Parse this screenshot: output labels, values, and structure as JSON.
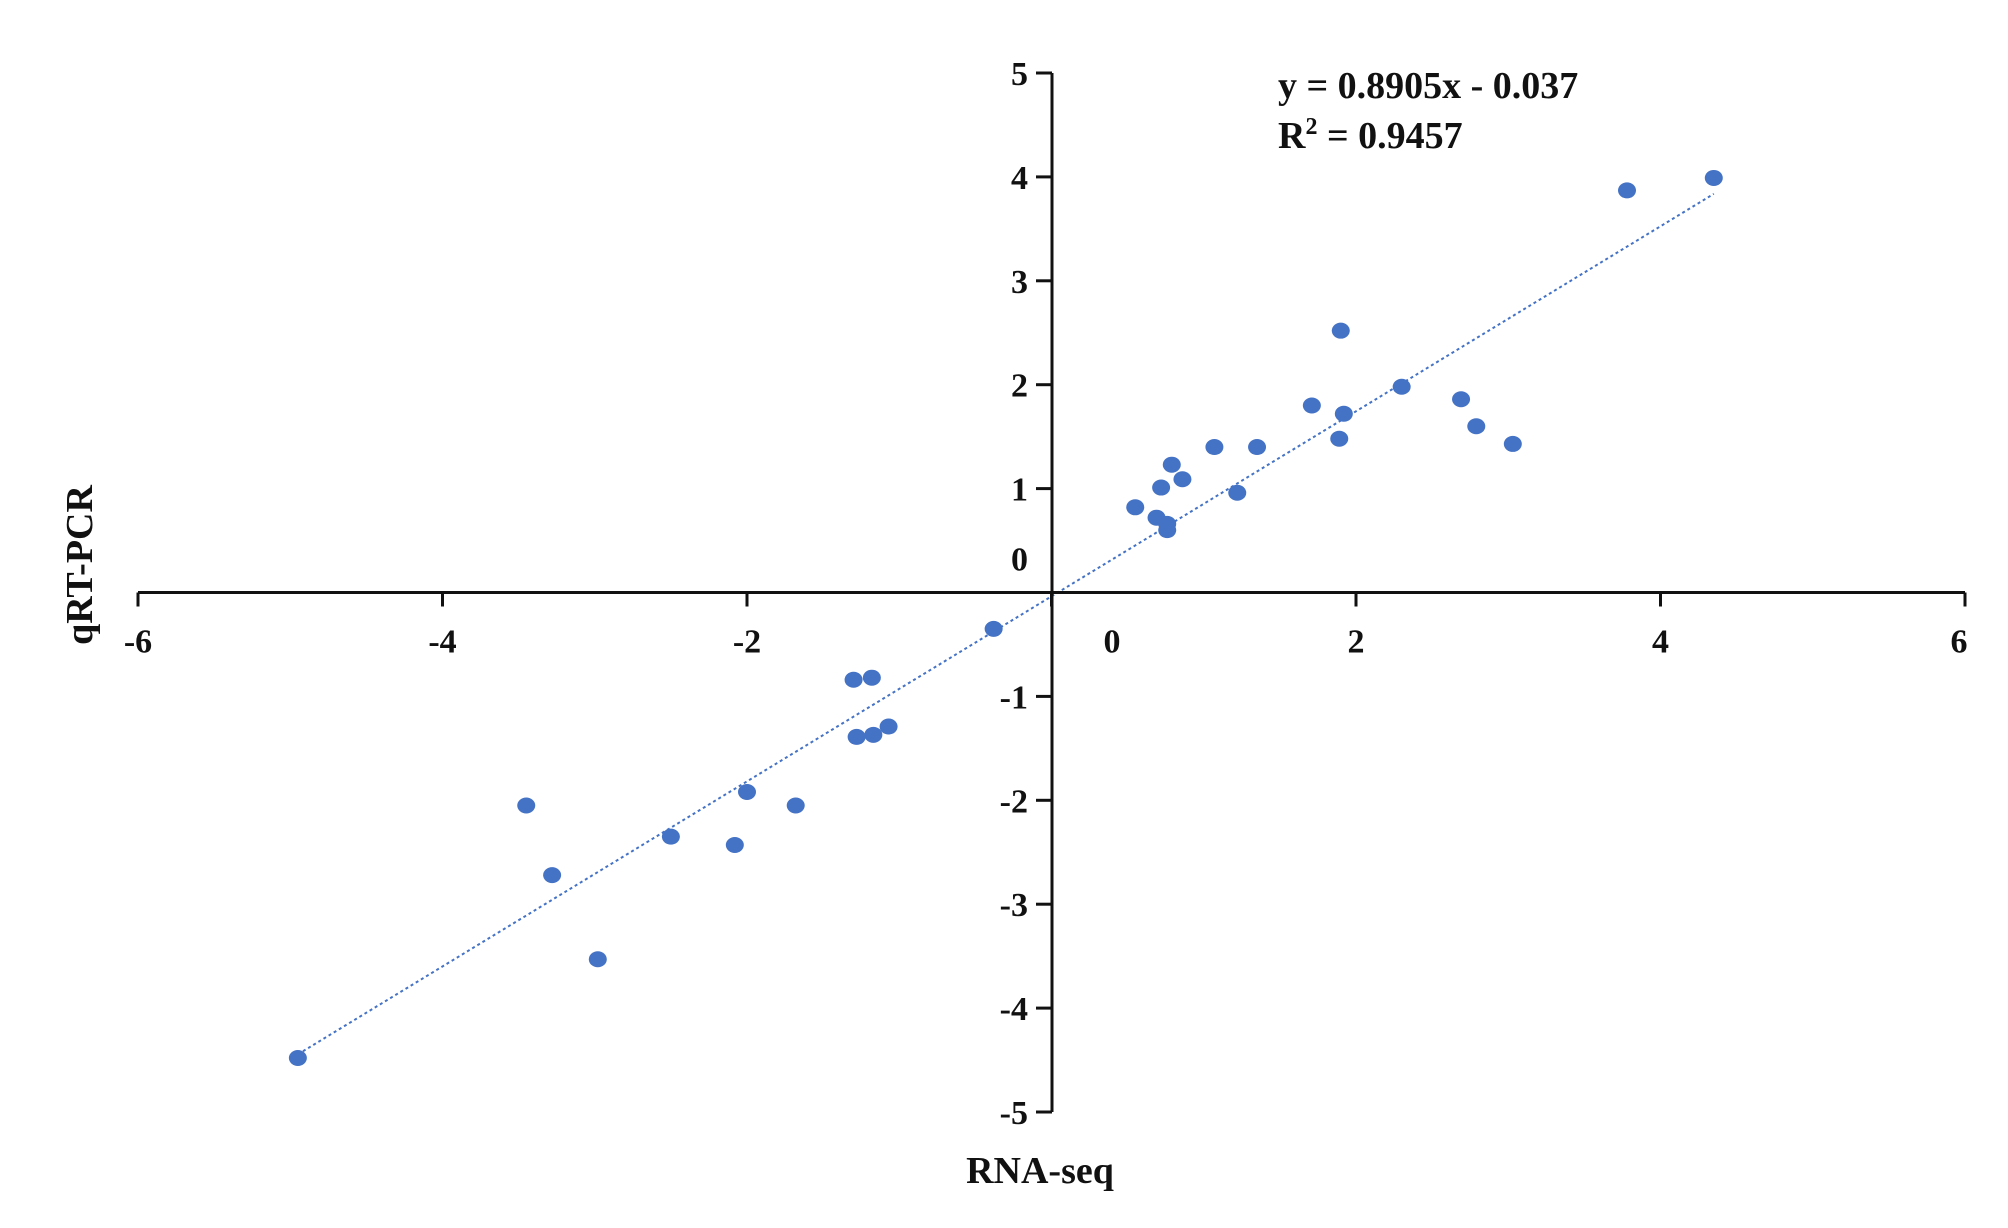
{
  "chart_data": {
    "type": "scatter",
    "title": "",
    "xlabel": "RNA-seq",
    "ylabel": "qRT-PCR",
    "xlim": [
      -6,
      6
    ],
    "ylim": [
      -5,
      5
    ],
    "xticks": [
      -6,
      -4,
      -2,
      0,
      2,
      4,
      6
    ],
    "yticks": [
      5,
      4,
      3,
      2,
      1,
      0,
      -1,
      -2,
      -3,
      -4,
      -5
    ],
    "xtick_labels": [
      "-6",
      "-4",
      "-2",
      "0",
      "2",
      "4",
      "6"
    ],
    "ytick_labels": [
      "5",
      "4",
      "3",
      "2",
      "1",
      "0",
      "-1",
      "-2",
      "-3",
      "-4",
      "-5"
    ],
    "grid": false,
    "point_color": "#4472c4",
    "trendline": {
      "slope": 0.8905,
      "intercept": -0.037,
      "x_range": [
        -4.95,
        4.35
      ],
      "style": "dotted",
      "color": "#4472c4"
    },
    "annotations": {
      "equation": "y = 0.8905x - 0.037",
      "r_squared_prefix": "R",
      "r_squared_sup": "2",
      "r_squared_suffix": " = 0.9457"
    },
    "points": [
      {
        "x": -4.95,
        "y": -4.48
      },
      {
        "x": -3.45,
        "y": -2.05
      },
      {
        "x": -3.28,
        "y": -2.72
      },
      {
        "x": -2.98,
        "y": -3.53
      },
      {
        "x": -2.5,
        "y": -2.35
      },
      {
        "x": -2.08,
        "y": -2.43
      },
      {
        "x": -2.0,
        "y": -1.92
      },
      {
        "x": -1.68,
        "y": -2.05
      },
      {
        "x": -1.3,
        "y": -0.84
      },
      {
        "x": -1.18,
        "y": -0.82
      },
      {
        "x": -1.28,
        "y": -1.39
      },
      {
        "x": -1.17,
        "y": -1.37
      },
      {
        "x": -1.07,
        "y": -1.29
      },
      {
        "x": -0.38,
        "y": -0.35
      },
      {
        "x": 0.55,
        "y": 0.82
      },
      {
        "x": 0.69,
        "y": 0.72
      },
      {
        "x": 0.72,
        "y": 1.01
      },
      {
        "x": 0.76,
        "y": 0.66
      },
      {
        "x": 0.76,
        "y": 0.6
      },
      {
        "x": 0.79,
        "y": 1.23
      },
      {
        "x": 0.86,
        "y": 1.09
      },
      {
        "x": 1.07,
        "y": 1.4
      },
      {
        "x": 1.22,
        "y": 0.96
      },
      {
        "x": 1.35,
        "y": 1.4
      },
      {
        "x": 1.71,
        "y": 1.8
      },
      {
        "x": 1.9,
        "y": 2.52
      },
      {
        "x": 1.89,
        "y": 1.48
      },
      {
        "x": 1.92,
        "y": 1.72
      },
      {
        "x": 2.3,
        "y": 1.98
      },
      {
        "x": 2.69,
        "y": 1.86
      },
      {
        "x": 2.79,
        "y": 1.6
      },
      {
        "x": 3.03,
        "y": 1.43
      },
      {
        "x": 3.78,
        "y": 3.87
      },
      {
        "x": 4.35,
        "y": 3.99
      }
    ]
  }
}
